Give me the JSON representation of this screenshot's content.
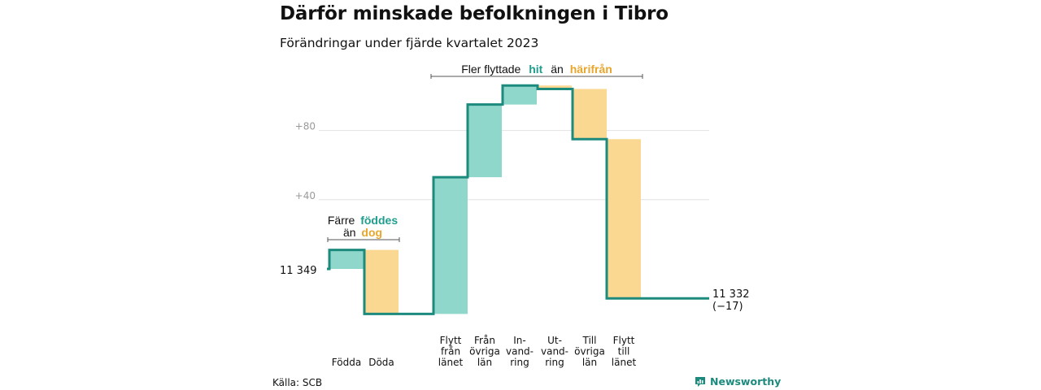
{
  "title": "Därför minskade befolkningen i Tibro",
  "subtitle": "Förändringar under fjärde kvartalet 2023",
  "source": "Källa: SCB",
  "brand": "Newsworthy",
  "colors": {
    "increase": "#8fd6cb",
    "decrease": "#fbd892",
    "line": "#1d8a7e",
    "grid": "#e2e2e2"
  },
  "annotations": {
    "births": {
      "w1": "Färre",
      "w2": "föddes",
      "w3": "än",
      "w4": "dog"
    },
    "moves": {
      "w1": "Fler flyttade",
      "w2": "hit",
      "w3": "än",
      "w4": "härifrån"
    }
  },
  "chart_data": {
    "type": "waterfall",
    "start_label": "11  349",
    "end_label": "11 332",
    "end_change": "(−17)",
    "ylim": [
      -10,
      120
    ],
    "yticks": [
      {
        "value": 40,
        "label": "+40"
      },
      {
        "value": 80,
        "label": "+80"
      }
    ],
    "steps": [
      {
        "lines": [
          "Födda"
        ],
        "change": 11,
        "group": 0
      },
      {
        "lines": [
          "Döda"
        ],
        "change": -37,
        "group": 0
      },
      {
        "lines": [
          "Flytt",
          "från",
          "länet"
        ],
        "change": 79,
        "group": 1
      },
      {
        "lines": [
          "Från",
          "övriga",
          "län"
        ],
        "change": 42,
        "group": 1
      },
      {
        "lines": [
          "In-",
          "vand-",
          "ring"
        ],
        "change": 11,
        "group": 1
      },
      {
        "lines": [
          "Ut-",
          "vand-",
          "ring"
        ],
        "change": -2,
        "group": 1
      },
      {
        "lines": [
          "Till",
          "övriga",
          "län"
        ],
        "change": -29,
        "group": 1
      },
      {
        "lines": [
          "Flytt",
          "till",
          "länet"
        ],
        "change": -92,
        "group": 1
      }
    ]
  }
}
